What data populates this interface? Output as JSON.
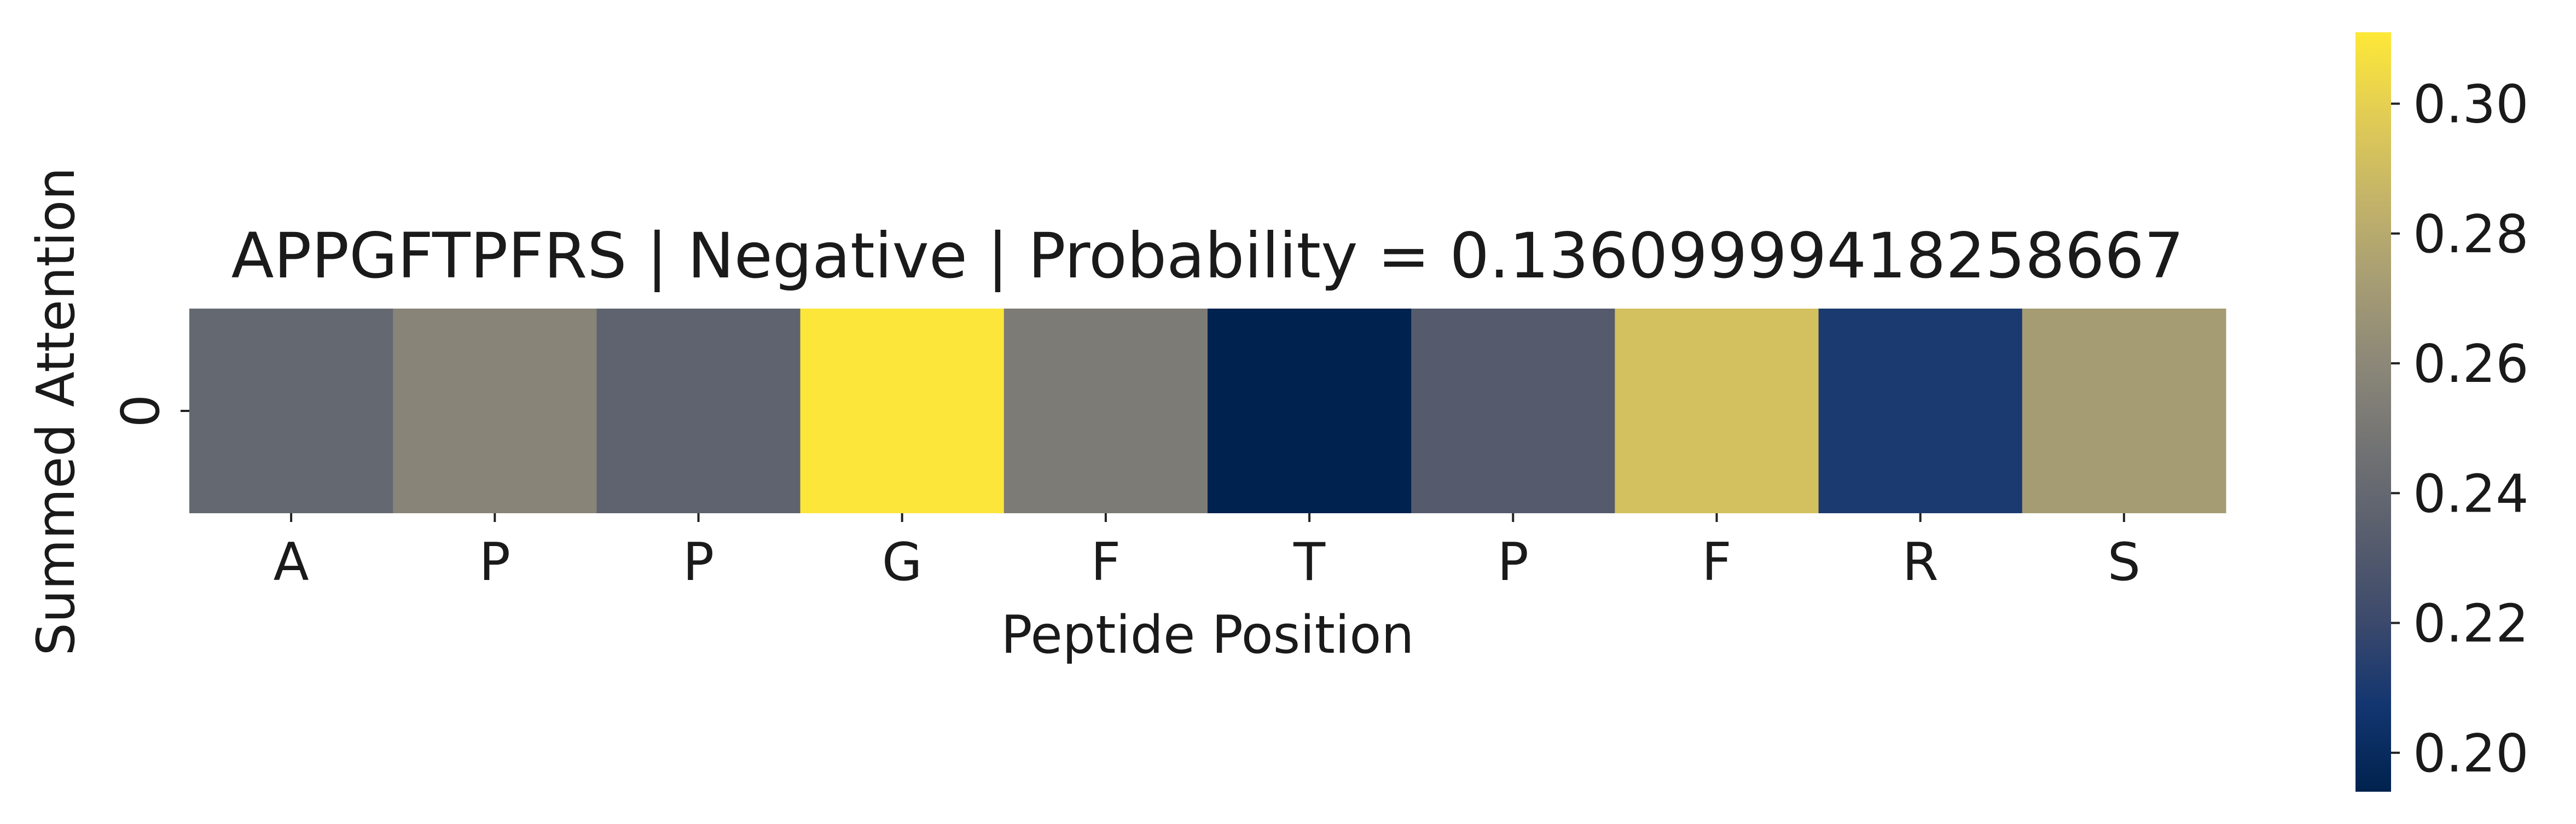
{
  "chart_data": {
    "type": "heatmap",
    "title": "APPGFTPFRS | Negative | Probability = 0.13609999418258667",
    "xlabel": "Peptide Position",
    "ylabel": "Summed Attention",
    "x_tick_labels": [
      "A",
      "P",
      "P",
      "G",
      "F",
      "T",
      "P",
      "F",
      "R",
      "S"
    ],
    "y_tick_labels": [
      "0"
    ],
    "values": [
      [
        0.24,
        0.258,
        0.237,
        0.31,
        0.252,
        0.194,
        0.232,
        0.292,
        0.21,
        0.272
      ]
    ],
    "colormap": "cividis",
    "colorbar": {
      "vmin": 0.194,
      "vmax": 0.311,
      "ticks": [
        0.2,
        0.22,
        0.24,
        0.26,
        0.28,
        0.3
      ],
      "tick_labels": [
        "0.20",
        "0.22",
        "0.24",
        "0.26",
        "0.28",
        "0.30"
      ],
      "stops": [
        "#00224e",
        "#123570",
        "#3b496c",
        "#575d6d",
        "#707173",
        "#8a8678",
        "#a59c74",
        "#c3b369",
        "#e1cc55",
        "#fee838"
      ]
    }
  }
}
